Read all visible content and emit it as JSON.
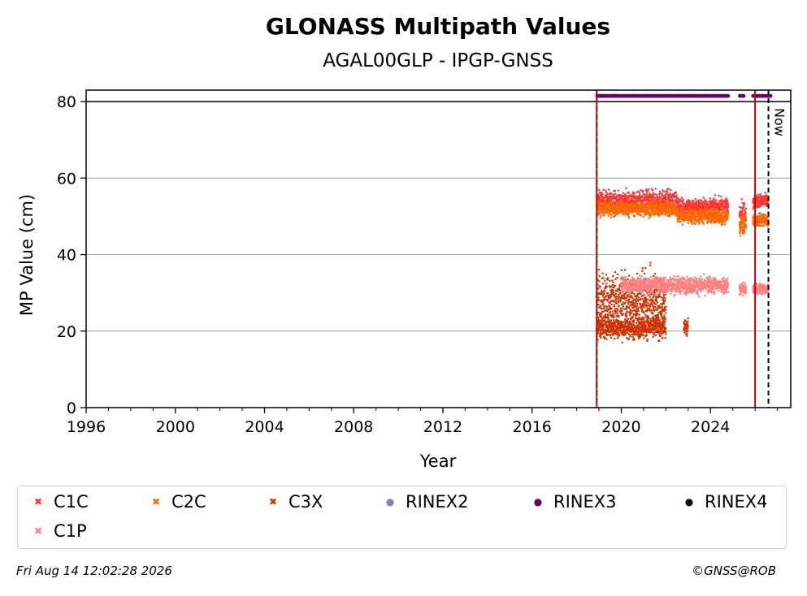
{
  "chart_data": {
    "type": "scatter",
    "title": "GLONASS Multipath Values",
    "subtitle": "AGAL00GLP - IPGP-GNSS",
    "xlabel": "Year",
    "ylabel": "MP Value (cm)",
    "xlim": [
      1996,
      2027.6
    ],
    "ylim": [
      0,
      83
    ],
    "xticks": [
      1996,
      2000,
      2004,
      2008,
      2012,
      2016,
      2020,
      2024
    ],
    "yticks": [
      0,
      20,
      40,
      60,
      80
    ],
    "grid": "horizontal",
    "legend_position": "bottom",
    "vertical_lines": [
      {
        "x": 2018.9,
        "color": "#008000",
        "style": "dashed"
      },
      {
        "x": 2018.9,
        "color": "#cc0000",
        "style": "solid"
      },
      {
        "x": 2026.0,
        "color": "#cc0000",
        "style": "solid"
      },
      {
        "x": 2026.6,
        "color": "#000000",
        "style": "dashed",
        "label": "Now"
      }
    ],
    "reference_line": {
      "y": 80,
      "color": "#000000"
    },
    "series": [
      {
        "name": "C1C",
        "color": "#ff3333",
        "marker": "x",
        "clusters": [
          {
            "x0": 2018.9,
            "x1": 2022.5,
            "y": 54,
            "spread": 2.2
          },
          {
            "x0": 2022.5,
            "x1": 2024.8,
            "y": 52.5,
            "spread": 1.8
          },
          {
            "x0": 2025.3,
            "x1": 2025.6,
            "y": 51,
            "spread": 2.5
          },
          {
            "x0": 2025.9,
            "x1": 2026.6,
            "y": 54,
            "spread": 1.5
          }
        ]
      },
      {
        "name": "C2C",
        "color": "#ff6600",
        "marker": "x",
        "clusters": [
          {
            "x0": 2018.9,
            "x1": 2022.5,
            "y": 52,
            "spread": 1.6
          },
          {
            "x0": 2022.5,
            "x1": 2024.8,
            "y": 50,
            "spread": 1.6
          },
          {
            "x0": 2025.3,
            "x1": 2025.6,
            "y": 48,
            "spread": 2
          },
          {
            "x0": 2025.9,
            "x1": 2026.6,
            "y": 49,
            "spread": 1.5
          }
        ]
      },
      {
        "name": "C3X",
        "color": "#cc3300",
        "marker": "x",
        "clusters": [
          {
            "x0": 2018.9,
            "x1": 2022.0,
            "y": 21,
            "spread": 2.5
          },
          {
            "x0": 2018.9,
            "x1": 2022.0,
            "y": 28,
            "spread": 6
          },
          {
            "x0": 2022.8,
            "x1": 2023.0,
            "y": 21,
            "spread": 2
          }
        ]
      },
      {
        "name": "RINEX2",
        "color": "#8080c0",
        "marker": "circle",
        "points": []
      },
      {
        "name": "RINEX3",
        "color": "#660066",
        "marker": "circle",
        "clusters": [
          {
            "x0": 2018.9,
            "x1": 2024.8,
            "y": 81.5,
            "spread": 0
          },
          {
            "x0": 2025.3,
            "x1": 2025.5,
            "y": 81.5,
            "spread": 0
          },
          {
            "x0": 2025.9,
            "x1": 2026.7,
            "y": 81.5,
            "spread": 0
          }
        ]
      },
      {
        "name": "RINEX4",
        "color": "#1a0020",
        "marker": "circle",
        "points": []
      },
      {
        "name": "C1P",
        "color": "#ff8080",
        "marker": "x",
        "clusters": [
          {
            "x0": 2020.0,
            "x1": 2024.8,
            "y": 32,
            "spread": 1.8
          },
          {
            "x0": 2025.3,
            "x1": 2025.6,
            "y": 31,
            "spread": 1.5
          },
          {
            "x0": 2025.9,
            "x1": 2026.6,
            "y": 31,
            "spread": 1.2
          }
        ]
      }
    ]
  },
  "footer": {
    "timestamp": "Fri Aug 14 12:02:28 2026",
    "copyright": "©GNSS@ROB"
  }
}
